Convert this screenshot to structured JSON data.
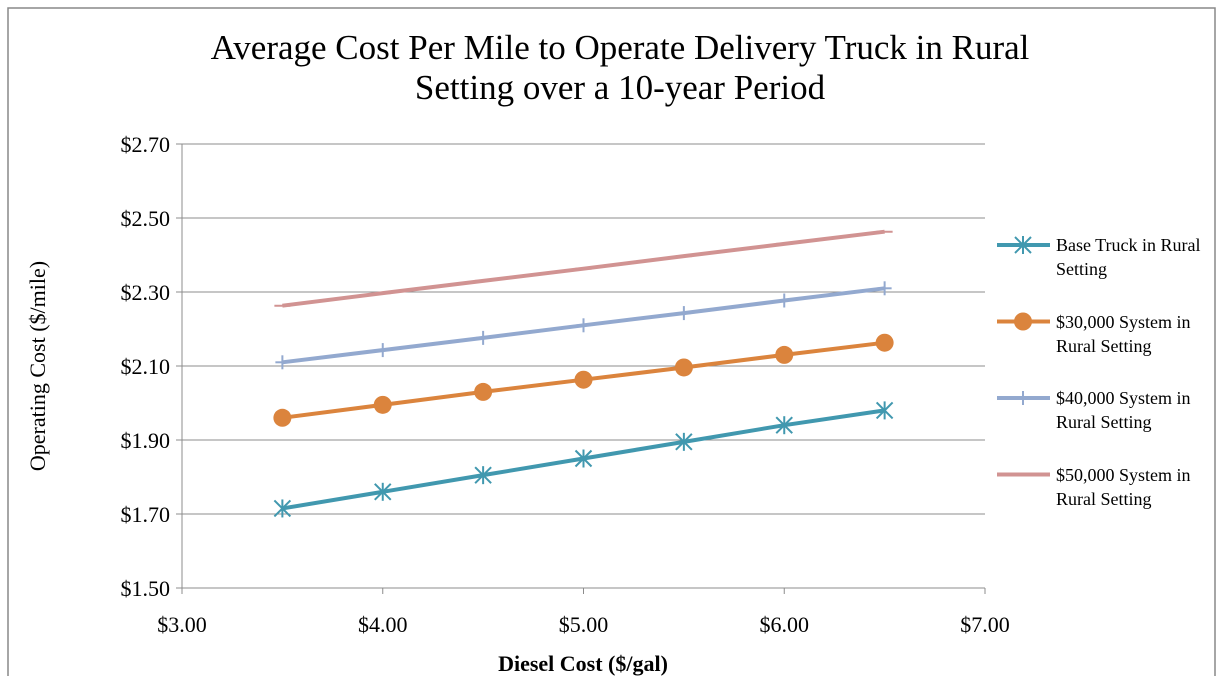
{
  "chart_data": {
    "type": "line",
    "title": "Average Cost Per Mile to Operate Delivery Truck in Rural Setting over a 10-year Period",
    "x_label": "Diesel Cost ($/gal)",
    "y_label": "Operating Cost ($/mile)",
    "x": [
      3.5,
      4.0,
      4.5,
      5.0,
      5.5,
      6.0,
      6.5
    ],
    "series": [
      {
        "name": "Base Truck in Rural Setting",
        "color": "#4198af",
        "marker": "asterisk",
        "values": [
          1.715,
          1.76,
          1.805,
          1.85,
          1.895,
          1.94,
          1.98
        ]
      },
      {
        "name": "$30,000 System in Rural Setting",
        "color": "#db843d",
        "marker": "circle",
        "values": [
          1.96,
          1.995,
          2.03,
          2.063,
          2.096,
          2.13,
          2.163
        ]
      },
      {
        "name": "$40,000 System in Rural Setting",
        "color": "#93a9cf",
        "marker": "plus",
        "values": [
          2.11,
          2.143,
          2.176,
          2.21,
          2.243,
          2.277,
          2.31
        ]
      },
      {
        "name": "$50,000 System in Rural Setting",
        "color": "#d19392",
        "marker": "dash",
        "values": [
          2.263,
          2.297,
          2.33,
          2.363,
          2.397,
          2.43,
          2.463
        ]
      }
    ],
    "xlim": [
      3,
      7
    ],
    "xticks": [
      {
        "value": 3,
        "label": "$3.00"
      },
      {
        "value": 4,
        "label": "$4.00"
      },
      {
        "value": 5,
        "label": "$5.00"
      },
      {
        "value": 6,
        "label": "$6.00"
      },
      {
        "value": 7,
        "label": "$7.00"
      }
    ],
    "ylim": [
      1.5,
      2.7
    ],
    "yticks": [
      {
        "value": 1.5,
        "label": "$1.50"
      },
      {
        "value": 1.7,
        "label": "$1.70"
      },
      {
        "value": 1.9,
        "label": "$1.90"
      },
      {
        "value": 2.1,
        "label": "$2.10"
      },
      {
        "value": 2.3,
        "label": "$2.30"
      },
      {
        "value": 2.5,
        "label": "$2.50"
      },
      {
        "value": 2.7,
        "label": "$2.70"
      }
    ],
    "grid": true,
    "legend": "right"
  }
}
